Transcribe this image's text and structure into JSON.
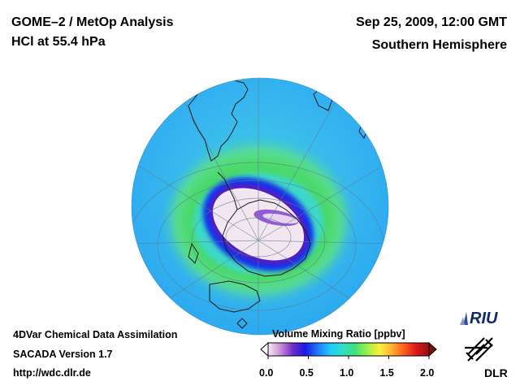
{
  "header": {
    "title_line1": "GOME–2 / MetOp Analysis",
    "title_line2": "HCl at 55.4 hPa",
    "date": "Sep 25, 2009, 12:00 GMT",
    "region": "Southern Hemisphere"
  },
  "footer": {
    "line1": "4DVar Chemical Data Assimilation",
    "line2": "SACADA Version 1.7",
    "url": "http://wdc.dlr.de"
  },
  "colorbar": {
    "title": "Volume Mixing Ratio [ppbv]",
    "ticks": [
      "0.0",
      "0.5",
      "1.0",
      "1.5",
      "2.0"
    ],
    "range": [
      0.0,
      2.0
    ],
    "colors": [
      "#f6eaf4",
      "#c98fd6",
      "#6f2bc9",
      "#1a1ae6",
      "#2277ff",
      "#22c8ff",
      "#2ee0c8",
      "#3fe07a",
      "#9bf04a",
      "#f8f040",
      "#ffb030",
      "#ff5a20",
      "#d81818",
      "#9a0f0f"
    ]
  },
  "logos": {
    "riu": "RIU",
    "dlr": "DLR"
  },
  "icons": {
    "globe": "southern-hemisphere-globe",
    "riu_logo": "riu-logo",
    "dlr_logo": "dlr-logo"
  }
}
